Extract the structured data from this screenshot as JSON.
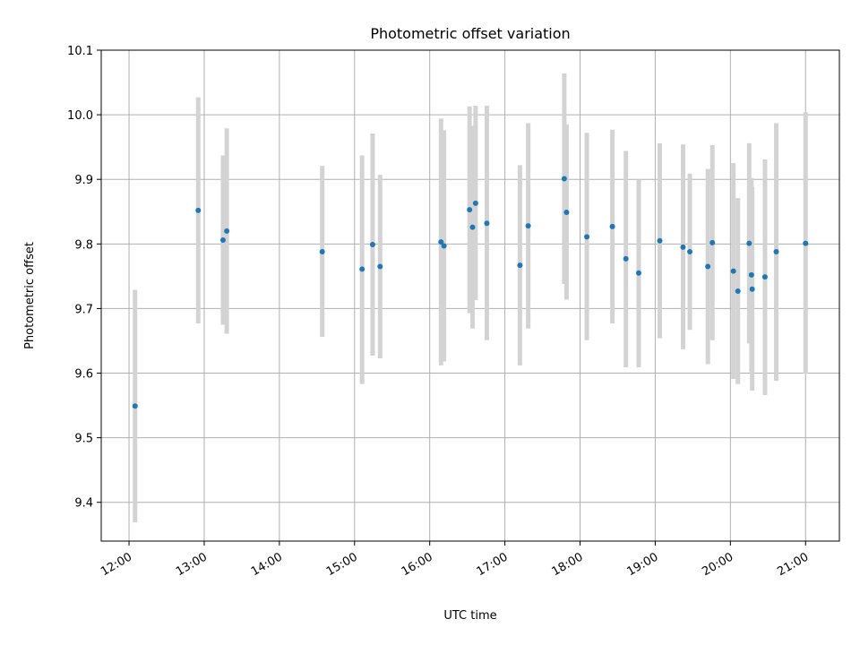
{
  "chart_data": {
    "type": "scatter",
    "title": "Photometric offset variation",
    "xlabel": "UTC time",
    "ylabel": "Photometric offset",
    "xlim": [
      11.63,
      21.45
    ],
    "ylim": [
      9.34,
      10.1
    ],
    "grid": true,
    "x_ticks": [
      {
        "value": 12,
        "label": "12:00"
      },
      {
        "value": 13,
        "label": "13:00"
      },
      {
        "value": 14,
        "label": "14:00"
      },
      {
        "value": 15,
        "label": "15:00"
      },
      {
        "value": 16,
        "label": "16:00"
      },
      {
        "value": 17,
        "label": "17:00"
      },
      {
        "value": 18,
        "label": "18:00"
      },
      {
        "value": 19,
        "label": "19:00"
      },
      {
        "value": 20,
        "label": "20:00"
      },
      {
        "value": 21,
        "label": "21:00"
      }
    ],
    "y_ticks": [
      {
        "value": 9.4,
        "label": "9.4"
      },
      {
        "value": 9.5,
        "label": "9.5"
      },
      {
        "value": 9.6,
        "label": "9.6"
      },
      {
        "value": 9.7,
        "label": "9.7"
      },
      {
        "value": 9.8,
        "label": "9.8"
      },
      {
        "value": 9.9,
        "label": "9.9"
      },
      {
        "value": 10.0,
        "label": "10.0"
      },
      {
        "value": 10.1,
        "label": "10.1"
      }
    ],
    "marker_color": "#1f77b4",
    "errorbar_color": "#d3d3d3",
    "points": [
      {
        "x": 12.08,
        "y": 9.549,
        "ylow": 9.369,
        "yhigh": 9.729
      },
      {
        "x": 12.92,
        "y": 9.852,
        "ylow": 9.677,
        "yhigh": 10.027
      },
      {
        "x": 13.25,
        "y": 9.806,
        "ylow": 9.675,
        "yhigh": 9.937
      },
      {
        "x": 13.3,
        "y": 9.82,
        "ylow": 9.661,
        "yhigh": 9.979
      },
      {
        "x": 14.57,
        "y": 9.788,
        "ylow": 9.656,
        "yhigh": 9.921
      },
      {
        "x": 15.1,
        "y": 9.761,
        "ylow": 9.583,
        "yhigh": 9.937
      },
      {
        "x": 15.24,
        "y": 9.799,
        "ylow": 9.627,
        "yhigh": 9.971
      },
      {
        "x": 15.34,
        "y": 9.765,
        "ylow": 9.623,
        "yhigh": 9.907
      },
      {
        "x": 16.15,
        "y": 9.803,
        "ylow": 9.612,
        "yhigh": 9.994
      },
      {
        "x": 16.19,
        "y": 9.797,
        "ylow": 9.618,
        "yhigh": 9.976
      },
      {
        "x": 16.53,
        "y": 9.853,
        "ylow": 9.693,
        "yhigh": 10.013
      },
      {
        "x": 16.57,
        "y": 9.826,
        "ylow": 9.669,
        "yhigh": 9.983
      },
      {
        "x": 16.61,
        "y": 9.863,
        "ylow": 9.713,
        "yhigh": 10.014
      },
      {
        "x": 16.76,
        "y": 9.832,
        "ylow": 9.651,
        "yhigh": 10.014
      },
      {
        "x": 17.2,
        "y": 9.767,
        "ylow": 9.612,
        "yhigh": 9.922
      },
      {
        "x": 17.31,
        "y": 9.828,
        "ylow": 9.669,
        "yhigh": 9.987
      },
      {
        "x": 17.79,
        "y": 9.901,
        "ylow": 9.738,
        "yhigh": 10.064
      },
      {
        "x": 17.82,
        "y": 9.849,
        "ylow": 9.714,
        "yhigh": 9.985
      },
      {
        "x": 18.09,
        "y": 9.811,
        "ylow": 9.651,
        "yhigh": 9.972
      },
      {
        "x": 18.43,
        "y": 9.827,
        "ylow": 9.677,
        "yhigh": 9.977
      },
      {
        "x": 18.61,
        "y": 9.777,
        "ylow": 9.609,
        "yhigh": 9.944
      },
      {
        "x": 18.78,
        "y": 9.755,
        "ylow": 9.609,
        "yhigh": 9.9
      },
      {
        "x": 19.06,
        "y": 9.805,
        "ylow": 9.654,
        "yhigh": 9.956
      },
      {
        "x": 19.37,
        "y": 9.795,
        "ylow": 9.637,
        "yhigh": 9.954
      },
      {
        "x": 19.46,
        "y": 9.788,
        "ylow": 9.667,
        "yhigh": 9.909
      },
      {
        "x": 19.7,
        "y": 9.765,
        "ylow": 9.614,
        "yhigh": 9.916
      },
      {
        "x": 19.76,
        "y": 9.802,
        "ylow": 9.651,
        "yhigh": 9.953
      },
      {
        "x": 20.04,
        "y": 9.758,
        "ylow": 9.591,
        "yhigh": 9.925
      },
      {
        "x": 20.1,
        "y": 9.727,
        "ylow": 9.583,
        "yhigh": 9.871
      },
      {
        "x": 20.25,
        "y": 9.801,
        "ylow": 9.646,
        "yhigh": 9.956
      },
      {
        "x": 20.28,
        "y": 9.752,
        "ylow": 9.602,
        "yhigh": 9.902
      },
      {
        "x": 20.29,
        "y": 9.73,
        "ylow": 9.573,
        "yhigh": 9.888
      },
      {
        "x": 20.46,
        "y": 9.749,
        "ylow": 9.566,
        "yhigh": 9.931
      },
      {
        "x": 20.61,
        "y": 9.788,
        "ylow": 9.588,
        "yhigh": 9.987
      },
      {
        "x": 21.0,
        "y": 9.801,
        "ylow": 9.599,
        "yhigh": 10.004
      }
    ]
  }
}
